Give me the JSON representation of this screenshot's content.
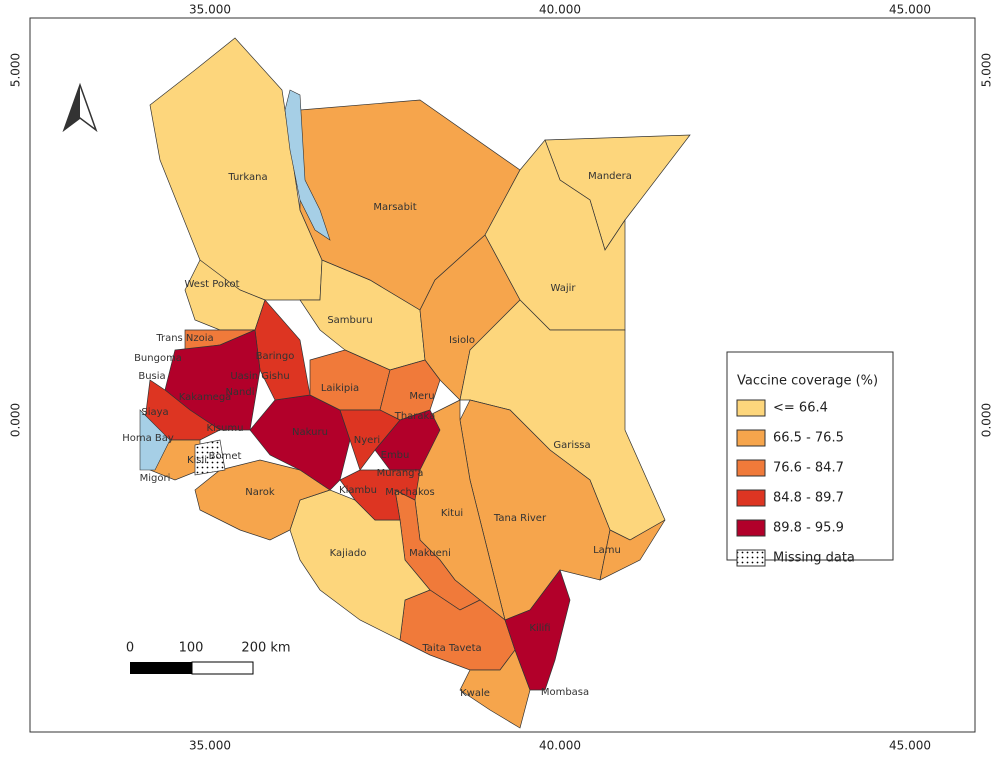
{
  "map": {
    "x_ticks": [
      {
        "value": 35,
        "label": "35.000"
      },
      {
        "value": 40,
        "label": "40.000"
      },
      {
        "value": 45,
        "label": "45.000"
      }
    ],
    "y_ticks": [
      {
        "value": 5,
        "label": "5.000"
      },
      {
        "value": 0,
        "label": "0.000"
      }
    ],
    "legend": {
      "title": "Vaccine coverage (%)",
      "classes": [
        {
          "label": "<= 66.4",
          "color": "#fdd67c"
        },
        {
          "label": "66.5 - 76.5",
          "color": "#f6a54c"
        },
        {
          "label": "76.6 - 84.7",
          "color": "#f07a3a"
        },
        {
          "label": "84.8 - 89.7",
          "color": "#dd3522"
        },
        {
          "label": "89.8 - 95.9",
          "color": "#b2002a"
        },
        {
          "label": "Missing data",
          "pattern": "dots"
        }
      ]
    },
    "scale_bar": {
      "labels": [
        "0",
        "100",
        "200 km"
      ]
    },
    "counties": [
      {
        "name": "Turkana",
        "color": "#fdd67c"
      },
      {
        "name": "Marsabit",
        "color": "#f6a54c"
      },
      {
        "name": "Mandera",
        "color": "#fdd67c"
      },
      {
        "name": "Wajir",
        "color": "#fdd67c"
      },
      {
        "name": "West Pokot",
        "color": "#fdd67c"
      },
      {
        "name": "Samburu",
        "color": "#fdd67c"
      },
      {
        "name": "Isiolo",
        "color": "#f6a54c"
      },
      {
        "name": "Garissa",
        "color": "#fdd67c"
      },
      {
        "name": "Tana River",
        "color": "#f6a54c"
      },
      {
        "name": "Lamu",
        "color": "#f6a54c"
      },
      {
        "name": "Kitui",
        "color": "#f6a54c"
      },
      {
        "name": "Makueni",
        "color": "#f07a3a"
      },
      {
        "name": "Taita Taveta",
        "color": "#f07a3a"
      },
      {
        "name": "Kwale",
        "color": "#f6a54c"
      },
      {
        "name": "Kilifi",
        "color": "#b2002a"
      },
      {
        "name": "Kajiado",
        "color": "#fdd67c"
      },
      {
        "name": "Narok",
        "color": "#f6a54c"
      },
      {
        "name": "Nakuru",
        "color": "#b2002a"
      },
      {
        "name": "Baringo",
        "color": "#dd3522"
      },
      {
        "name": "Laikipia",
        "color": "#f07a3a"
      },
      {
        "name": "Meru",
        "color": "#f07a3a"
      },
      {
        "name": "Tharaka",
        "color": "#b2002a"
      },
      {
        "name": "Nyeri",
        "color": "#dd3522"
      },
      {
        "name": "Machakos",
        "color": "#dd3522"
      },
      {
        "name": "Kakamega",
        "color": "#b2002a"
      },
      {
        "name": "Trans Nzoia",
        "color": "#f07a3a"
      },
      {
        "name": "Kisumu",
        "color": "#dd3522"
      },
      {
        "name": "Homa Bay",
        "color": "#f6a54c"
      },
      {
        "name": "Bomet"
      },
      {
        "name": "Migori"
      },
      {
        "name": "Bungoma"
      },
      {
        "name": "Busia"
      },
      {
        "name": "Uasin Gishu"
      },
      {
        "name": "Nandi"
      },
      {
        "name": "Siaya"
      },
      {
        "name": "Embu"
      },
      {
        "name": "Kiambu"
      },
      {
        "name": "Murang'a"
      },
      {
        "name": "Mombasa"
      },
      {
        "name": "Kisii"
      }
    ]
  }
}
